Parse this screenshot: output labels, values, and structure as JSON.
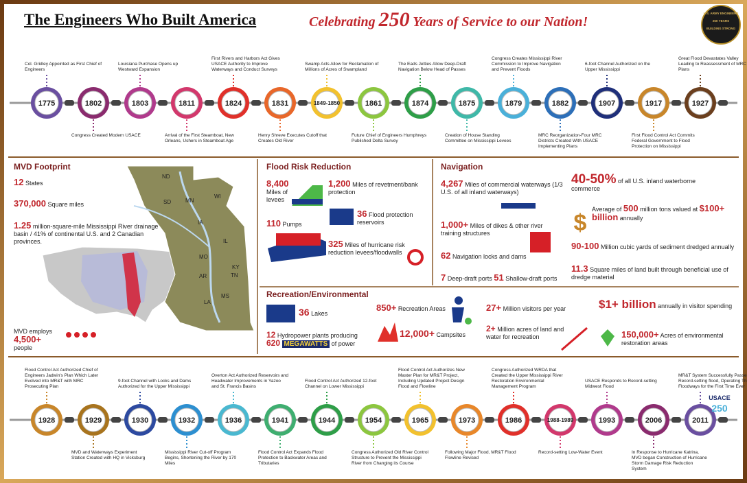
{
  "header": {
    "title": "The Engineers Who Built America",
    "tagline": {
      "before": "Celebrating",
      "number": "250",
      "after": "Years of Service to our Nation!"
    },
    "badge": [
      "U.S. ARMY ENGINEERS",
      "250 YEARS",
      "BUILDING STRONG"
    ]
  },
  "timeline_top": [
    {
      "year": "1775",
      "text": "Col. Gridley Appointed as First Chief of Engineers",
      "side": "above",
      "color": "#6a4fa0"
    },
    {
      "year": "1802",
      "text": "Congress Created Modern USACE",
      "side": "below",
      "color": "#8a2b6e"
    },
    {
      "year": "1803",
      "text": "Louisiana Purchase Opens up Westward Expansion",
      "side": "above",
      "color": "#b03a8c"
    },
    {
      "year": "1811",
      "text": "Arrival of the First Steamboat, New Orleans, Ushers in Steamboat Age",
      "side": "below",
      "color": "#d2386c"
    },
    {
      "year": "1824",
      "text": "First Rivers and Harbors Act Gives USACE Authority to Improve Waterways and Conduct Surveys",
      "side": "above",
      "color": "#e0302a"
    },
    {
      "year": "1831",
      "text": "Henry Shreve Executes Cutoff that Creates Old River",
      "side": "below",
      "color": "#e8672a"
    },
    {
      "year": "1849-1850",
      "text": "Swamp Acts Allow for Reclamation of Millions of Acres of Swampland",
      "side": "above",
      "color": "#f2c12e"
    },
    {
      "year": "1861",
      "text": "Future Chief of Engineers Humphreys Published Delta Survey",
      "side": "below",
      "color": "#8cc63f"
    },
    {
      "year": "1874",
      "text": "The Eads Jetties Allow Deep-Draft Navigation Below Head of Passes",
      "side": "above",
      "color": "#2e9e48"
    },
    {
      "year": "1875",
      "text": "Creation of House Standing Committee on Mississippi Levees",
      "side": "below",
      "color": "#3fb8a8"
    },
    {
      "year": "1879",
      "text": "Congress Creates Mississippi River Commission to Improve Navigation and Prevent Floods",
      "side": "above",
      "color": "#4ab0d9"
    },
    {
      "year": "1882",
      "text": "MRC Reorganization-Four MRC Districts Created With USACE Implementing Plans",
      "side": "below",
      "color": "#2d6fb8"
    },
    {
      "year": "1907",
      "text": "6-foot Channel Authorized on the Upper Mississippi",
      "side": "above",
      "color": "#1f2f7a"
    },
    {
      "year": "1917",
      "text": "First Flood Control Act Commits Federal Government to Flood Protection on Mississippi",
      "side": "below",
      "color": "#c8862a"
    },
    {
      "year": "1927",
      "text": "Great Flood Devastates Valley Leading to Reassessment of MRC Plans",
      "side": "above",
      "color": "#6b3f1e"
    }
  ],
  "footprint": {
    "title": "MVD Footprint",
    "stats": [
      {
        "value": "12",
        "label": "States"
      },
      {
        "value": "370,000",
        "label": "Square miles"
      },
      {
        "value": "1.25",
        "label": "million-square-mile Mississippi River drainage basin / 41% of continental U.S. and 2 Canadian provinces."
      }
    ],
    "employs": {
      "prefix": "MVD employs",
      "value": "4,500+",
      "label": "people"
    },
    "map_labels": [
      "ND",
      "SD",
      "MN",
      "WI",
      "IA",
      "IL",
      "MO",
      "KY",
      "TN",
      "AR",
      "MS",
      "LA"
    ]
  },
  "flood_risk": {
    "title": "Flood Risk Reduction",
    "stats": [
      {
        "value": "8,400",
        "label": "Miles of levees"
      },
      {
        "value": "1,200",
        "label": "Miles of revetment/bank protection"
      },
      {
        "value": "110",
        "label": "Pumps"
      },
      {
        "value": "36",
        "label": "Flood protection reservoirs"
      },
      {
        "value": "325",
        "label": "Miles of hurricane risk reduction levees/floodwalls"
      }
    ]
  },
  "navigation": {
    "title": "Navigation",
    "stats": [
      {
        "value": "4,267",
        "label": "Miles of commercial waterways (1/3 U.S. of all inland waterways)"
      },
      {
        "value": "40-50%",
        "label": "of all U.S. inland waterborne commerce"
      },
      {
        "prefix": "Average of",
        "value": "500",
        "label": "million tons valued at",
        "value2": "$100+ billion",
        "label2": "annually"
      },
      {
        "value": "1,000+",
        "label": "Miles of dikes & other river training structures"
      },
      {
        "value": "62",
        "label": "Navigation locks and dams"
      },
      {
        "value": "90-100",
        "label": "Million cubic yards of sediment dredged annually"
      },
      {
        "value": "7",
        "label": "Deep-draft ports",
        "value2": "51",
        "label2": "Shallow-draft ports"
      },
      {
        "value": "11.3",
        "label": "Square miles of land built through beneficial use of dredge material"
      }
    ]
  },
  "recreation": {
    "title": "Recreation/Environmental",
    "stats": [
      {
        "value": "36",
        "label": "Lakes"
      },
      {
        "value": "850+",
        "label": "Recreation Areas"
      },
      {
        "value": "27+",
        "label": "Million visitors per year"
      },
      {
        "value": "$1+ billion",
        "label": "annually in visitor spending"
      },
      {
        "value": "12",
        "label": "Hydropower plants producing",
        "value2": "620",
        "unit": "MEGAWATTS",
        "label2": "of power"
      },
      {
        "value": "12,000+",
        "label": "Campsites"
      },
      {
        "value": "2+",
        "label": "Million acres of land and water for recreation"
      },
      {
        "value": "150,000+",
        "label": "Acres of environmental restoration areas"
      }
    ]
  },
  "timeline_bottom": [
    {
      "year": "1928",
      "text": "Flood Control Act Authorized Chief of Engineers Jadwin's Plan Which Later Evolved into MR&T with MRC Prosecuting Plan",
      "side": "above",
      "color": "#c8862a"
    },
    {
      "year": "1929",
      "text": "MVD and Waterways Experiment Station Created with HQ in Vicksburg",
      "side": "below",
      "color": "#a8741e"
    },
    {
      "year": "1930",
      "text": "9-foot Channel with Locks and Dams Authorized for the Upper Mississippi",
      "side": "above",
      "color": "#2d4aa0"
    },
    {
      "year": "1932",
      "text": "Mississippi River Cut-off Program Begins, Shortening the River by 170 Miles",
      "side": "below",
      "color": "#2d8fd0"
    },
    {
      "year": "1936",
      "text": "Overton Act Authorized Reservoirs and Headwater Improvements in Yazoo and St. Francis Basins",
      "side": "above",
      "color": "#4ab8d0"
    },
    {
      "year": "1941",
      "text": "Flood Control Act Expands Flood Protection to Backwater Areas and Tributaries",
      "side": "below",
      "color": "#3fae70"
    },
    {
      "year": "1944",
      "text": "Flood Control Act Authorized 12-foot Channel on Lower Mississippi",
      "side": "above",
      "color": "#2e9e48"
    },
    {
      "year": "1954",
      "text": "Congress Authorized Old River Control Structure to Prevent the Mississippi River from Changing its Course",
      "side": "below",
      "color": "#8cc63f"
    },
    {
      "year": "1965",
      "text": "Flood Control Act Authorizes New Master Plan for MR&T Project, Including Updated Project Design Flood and Flowline",
      "side": "above",
      "color": "#f2c12e"
    },
    {
      "year": "1973",
      "text": "Following Major Flood, MR&T Flood Flowline Revised",
      "side": "below",
      "color": "#e8872a"
    },
    {
      "year": "1986",
      "text": "Congress Authorized WRDA that Created the Upper Mississippi River Restoration Environmental Management Program",
      "side": "above",
      "color": "#e0302a"
    },
    {
      "year": "1988-1989",
      "text": "Record-setting Low-Water Event",
      "side": "below",
      "color": "#d2386c"
    },
    {
      "year": "1993",
      "text": "USACE Responds to Record-setting Midwest Flood",
      "side": "above",
      "color": "#b03a8c"
    },
    {
      "year": "2006",
      "text": "In Response to Hurricane Katrina, MVD began Construction of Hurricane Storm Damage Risk Reduction System",
      "side": "below",
      "color": "#8a2b6e"
    },
    {
      "year": "2011",
      "text": "MR&T System Successfully Passes Record-setting flood, Operating Three Floodways for the First Time Ever",
      "side": "above",
      "color": "#6a4fa0"
    }
  ],
  "logo": {
    "text": "USACE",
    "number": "250"
  }
}
